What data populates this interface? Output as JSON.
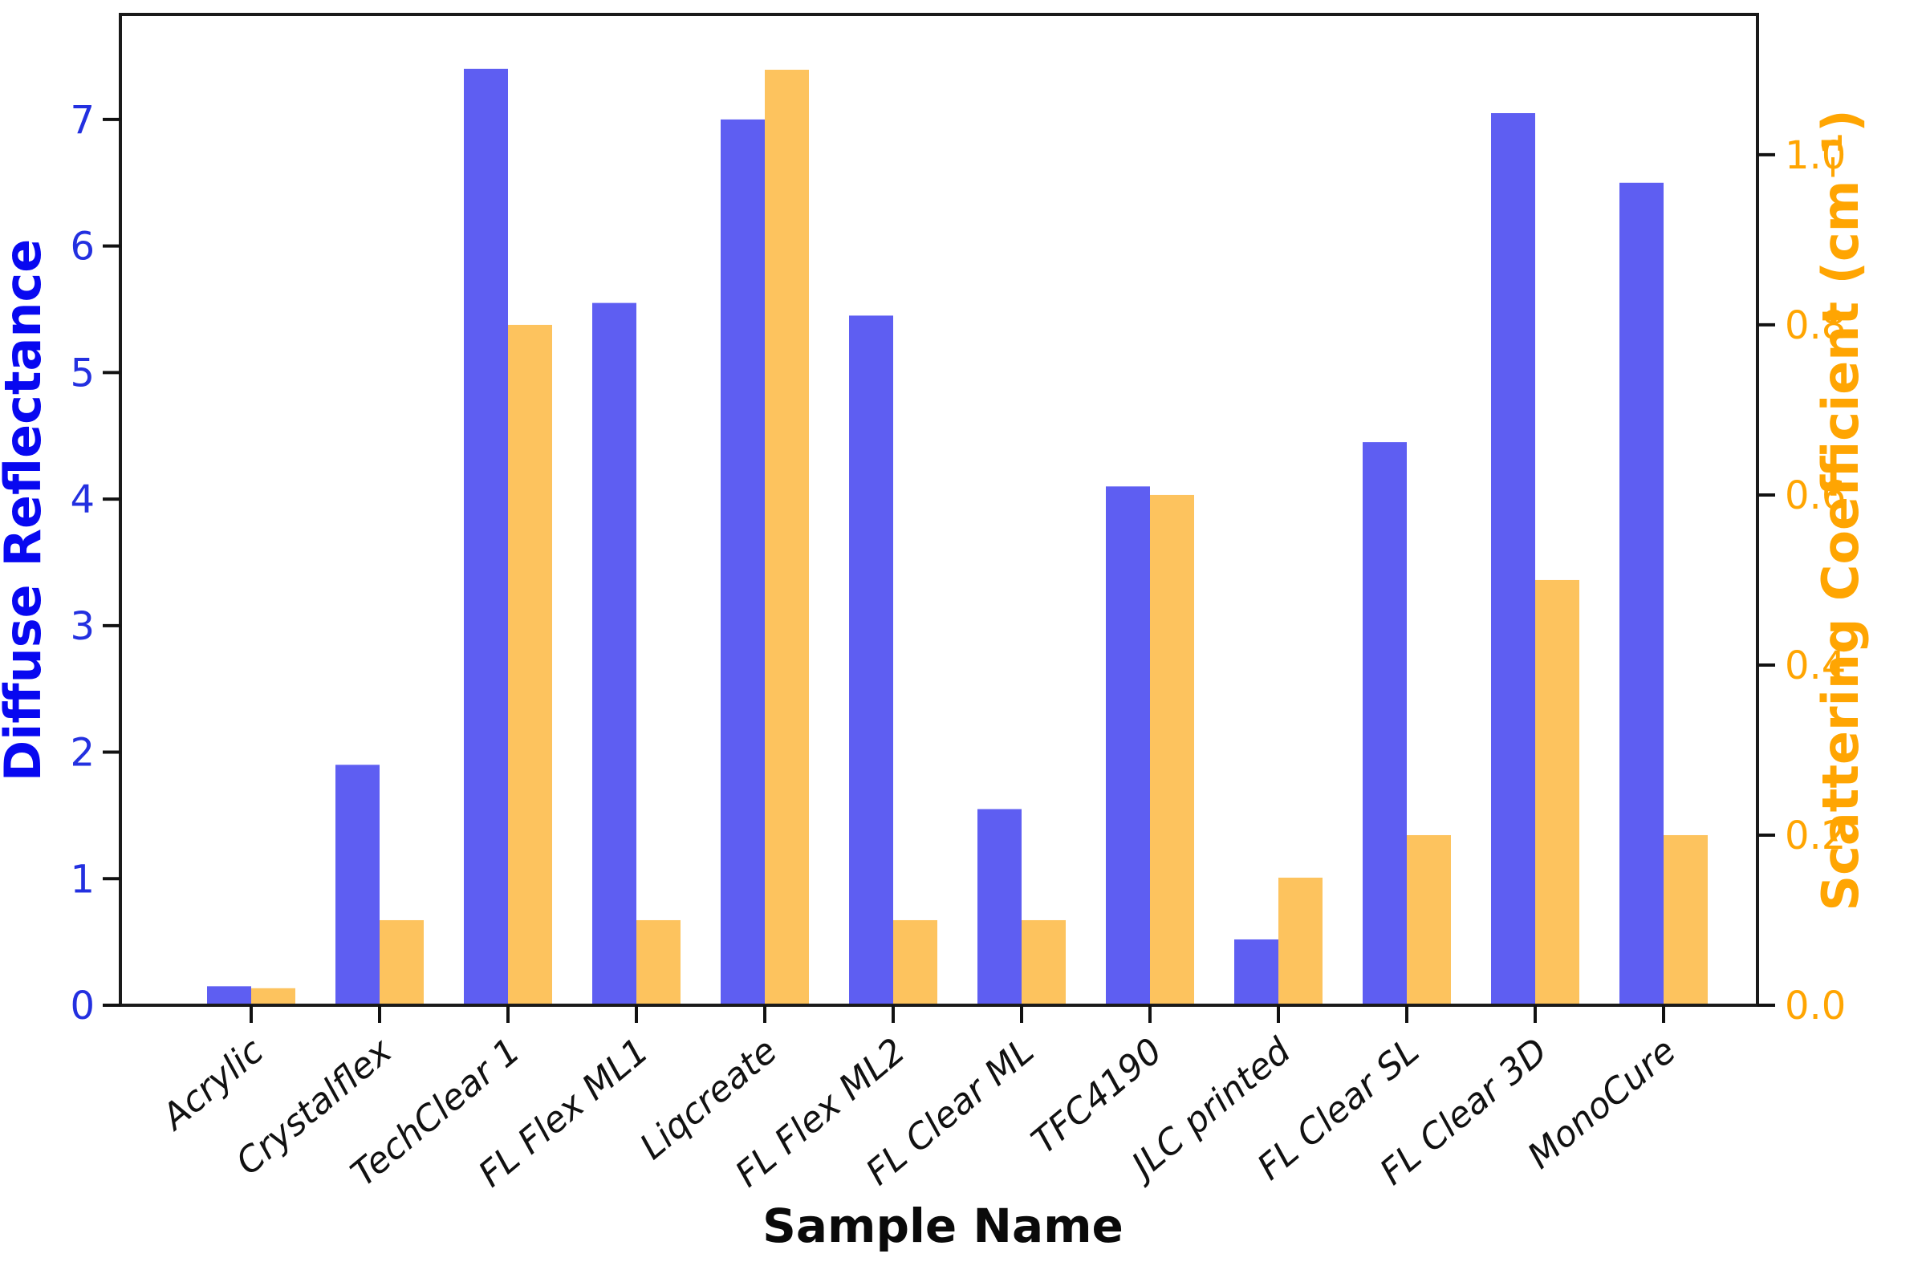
{
  "chart_data": {
    "type": "bar",
    "title": "",
    "xlabel": "Sample Name",
    "ylabel_left": "Diffuse Reflectance",
    "ylabel_right": "Scattering Coefficient (cm⁻¹)",
    "categories": [
      "Acrylic",
      "Crystalflex",
      "TechClear 1",
      "FL Flex ML1",
      "Liqcreate",
      "FL Flex ML2",
      "FL Clear ML",
      "TFC4190",
      "JLC printed",
      "FL Clear SL",
      "FL Clear 3D",
      "MonoCure"
    ],
    "series": [
      {
        "name": "Diffuse Reflectance",
        "axis": "left",
        "color": "#5e5ef2",
        "values": [
          0.15,
          1.9,
          7.4,
          5.55,
          7.0,
          5.45,
          1.55,
          4.1,
          0.52,
          4.45,
          7.05,
          6.5
        ]
      },
      {
        "name": "Scattering Coefficient (cm⁻¹)",
        "axis": "right",
        "color": "#fdc35e",
        "values": [
          0.02,
          0.1,
          0.8,
          0.1,
          1.1,
          0.1,
          0.1,
          0.6,
          0.15,
          0.2,
          0.5,
          0.2
        ]
      }
    ],
    "left_axis": {
      "tick_values": [
        0,
        1,
        2,
        3,
        4,
        5,
        6,
        7
      ],
      "tick_labels": [
        "0",
        "1",
        "2",
        "3",
        "4",
        "5",
        "6",
        "7"
      ],
      "range": [
        0,
        7.83
      ],
      "title_color": "#0808f0",
      "tick_label_color": "#2330e0"
    },
    "right_axis": {
      "tick_values": [
        0,
        0.2,
        0.4,
        0.6,
        0.8,
        1.0
      ],
      "tick_labels": [
        "0.0",
        "0.2",
        "0.4",
        "0.6",
        "0.8",
        "1.0"
      ],
      "range": [
        0,
        1.165
      ],
      "title_color": "#ffa502",
      "tick_label_color": "#ffa502"
    },
    "x_tick_rotation_deg": 40,
    "grid": false
  }
}
